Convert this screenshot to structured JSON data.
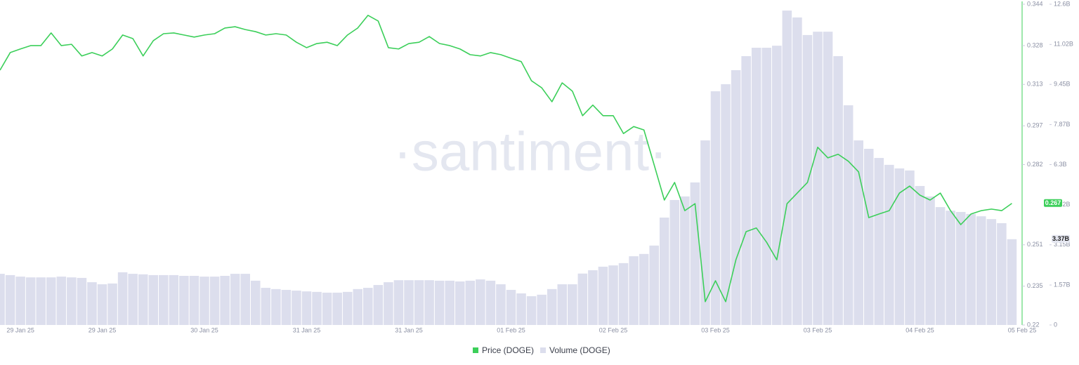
{
  "chart_data": {
    "type": "line",
    "watermark": "·santiment·",
    "categories": [
      null,
      null,
      "29 Jan 25",
      null,
      null,
      null,
      null,
      null,
      null,
      null,
      "29 Jan 25",
      null,
      null,
      null,
      null,
      null,
      null,
      null,
      null,
      null,
      "30 Jan 25",
      null,
      null,
      null,
      null,
      null,
      null,
      null,
      null,
      null,
      "31 Jan 25",
      null,
      null,
      null,
      null,
      null,
      null,
      null,
      null,
      null,
      "31 Jan 25",
      null,
      null,
      null,
      null,
      null,
      null,
      null,
      null,
      null,
      "01 Feb 25",
      null,
      null,
      null,
      null,
      null,
      null,
      null,
      null,
      null,
      "02 Feb 25",
      null,
      null,
      null,
      null,
      null,
      null,
      null,
      null,
      null,
      "03 Feb 25",
      null,
      null,
      null,
      null,
      null,
      null,
      null,
      null,
      null,
      "03 Feb 25",
      null,
      null,
      null,
      null,
      null,
      null,
      null,
      null,
      null,
      "04 Feb 25",
      null,
      null,
      null,
      null,
      null,
      null,
      null,
      null,
      null,
      "05 Feb 25"
    ],
    "series": [
      {
        "name": "Price (DOGE)",
        "type": "line",
        "color": "#3ccf5a",
        "axis": "y",
        "values": [
          0.3185,
          0.3253,
          0.3267,
          0.328,
          0.328,
          0.3329,
          0.328,
          0.3285,
          0.324,
          0.3253,
          0.324,
          0.3267,
          0.3321,
          0.3307,
          0.324,
          0.3299,
          0.3326,
          0.3329,
          0.3321,
          0.3313,
          0.3321,
          0.3326,
          0.3348,
          0.3353,
          0.3342,
          0.3334,
          0.3321,
          0.3326,
          0.3321,
          0.3293,
          0.3272,
          0.3288,
          0.3293,
          0.328,
          0.3321,
          0.3348,
          0.3397,
          0.3375,
          0.3272,
          0.3267,
          0.3288,
          0.3293,
          0.3315,
          0.3288,
          0.328,
          0.3267,
          0.3245,
          0.324,
          0.3253,
          0.3245,
          0.3231,
          0.3218,
          0.3144,
          0.3117,
          0.3063,
          0.3136,
          0.3104,
          0.3009,
          0.305,
          0.3009,
          0.3009,
          0.294,
          0.2967,
          0.2954,
          0.2819,
          0.2683,
          0.2751,
          0.2642,
          0.2669,
          0.229,
          0.2371,
          0.229,
          0.2452,
          0.2561,
          0.2575,
          0.252,
          0.2452,
          0.2669,
          0.271,
          0.2751,
          0.2887,
          0.2846,
          0.286,
          0.2833,
          0.2792,
          0.2615,
          0.2629,
          0.2642,
          0.271,
          0.2737,
          0.2702,
          0.2683,
          0.271,
          0.2642,
          0.2588,
          0.2629,
          0.2642,
          0.2648,
          0.2642,
          0.267,
          null
        ]
      },
      {
        "name": "Volume (DOGE)",
        "type": "bar",
        "color": "#dcdeed",
        "axis": "y2",
        "values": [
          2010000000.0,
          1960000000.0,
          1900000000.0,
          1870000000.0,
          1870000000.0,
          1870000000.0,
          1900000000.0,
          1870000000.0,
          1850000000.0,
          1680000000.0,
          1600000000.0,
          1630000000.0,
          2070000000.0,
          2010000000.0,
          1990000000.0,
          1960000000.0,
          1960000000.0,
          1960000000.0,
          1930000000.0,
          1930000000.0,
          1900000000.0,
          1900000000.0,
          1930000000.0,
          2010000000.0,
          2010000000.0,
          1740000000.0,
          1460000000.0,
          1410000000.0,
          1380000000.0,
          1350000000.0,
          1320000000.0,
          1300000000.0,
          1270000000.0,
          1270000000.0,
          1300000000.0,
          1410000000.0,
          1460000000.0,
          1570000000.0,
          1680000000.0,
          1760000000.0,
          1760000000.0,
          1760000000.0,
          1760000000.0,
          1740000000.0,
          1740000000.0,
          1710000000.0,
          1740000000.0,
          1790000000.0,
          1740000000.0,
          1600000000.0,
          1380000000.0,
          1240000000.0,
          1130000000.0,
          1190000000.0,
          1410000000.0,
          1600000000.0,
          1600000000.0,
          2020000000.0,
          2150000000.0,
          2290000000.0,
          2340000000.0,
          2430000000.0,
          2700000000.0,
          2790000000.0,
          3120000000.0,
          4220000000.0,
          4910000000.0,
          5050000000.0,
          5600000000.0,
          7250000000.0,
          9180000000.0,
          9460000000.0,
          10010000000.0,
          10560000000.0,
          10890000000.0,
          10890000000.0,
          10970000000.0,
          12350000000.0,
          12080000000.0,
          11390000000.0,
          11520000000.0,
          11520000000.0,
          10560000000.0,
          8630000000.0,
          7250000000.0,
          6920000000.0,
          6560000000.0,
          6290000000.0,
          6150000000.0,
          6070000000.0,
          5460000000.0,
          5050000000.0,
          4630000000.0,
          4490000000.0,
          4440000000.0,
          4360000000.0,
          4270000000.0,
          4160000000.0,
          4000000000.0,
          3370000000.0,
          null
        ],
        "value_labels": [
          null,
          null,
          null,
          null,
          null,
          null,
          null,
          null,
          null,
          null,
          null,
          null,
          null,
          null,
          null,
          null,
          null,
          null,
          null,
          null,
          null,
          null,
          null,
          null,
          null,
          null,
          null,
          null,
          null,
          null,
          null,
          null,
          null,
          null,
          null,
          null,
          null,
          null,
          null,
          null,
          null,
          null,
          null,
          null,
          null,
          null,
          null,
          null,
          null,
          null,
          null,
          null,
          null,
          null,
          null,
          null,
          null,
          null,
          null,
          null,
          null,
          null,
          null,
          null,
          null,
          null,
          null,
          null,
          null,
          null,
          null,
          null,
          null,
          null,
          null,
          null,
          null,
          null,
          null,
          null,
          null,
          null,
          null,
          null,
          null,
          null,
          null,
          null,
          null,
          null,
          null,
          null,
          null,
          null,
          null,
          null,
          null,
          null,
          null,
          "3.37B",
          null
        ]
      }
    ],
    "ylim": [
      0.22,
      0.344
    ],
    "yticks": [
      0.22,
      0.235,
      0.251,
      0.282,
      0.297,
      0.313,
      0.328,
      0.344
    ],
    "y2lim": [
      0,
      12600000000
    ],
    "y2ticks": [
      0,
      {
        "value": 1570000000,
        "label": "1.57B"
      },
      {
        "value": 3150000000,
        "label": "3.15B"
      },
      {
        "value": 4720000000,
        "label": "4.72B"
      },
      {
        "value": 6300000000,
        "label": "6.3B"
      },
      {
        "value": 7870000000,
        "label": "7.87B"
      },
      {
        "value": 9450000000,
        "label": "9.45B"
      },
      {
        "value": 11020000000,
        "label": "11.02B"
      },
      {
        "value": 12600000000,
        "label": "12.6B"
      }
    ],
    "legend": "bottom"
  }
}
